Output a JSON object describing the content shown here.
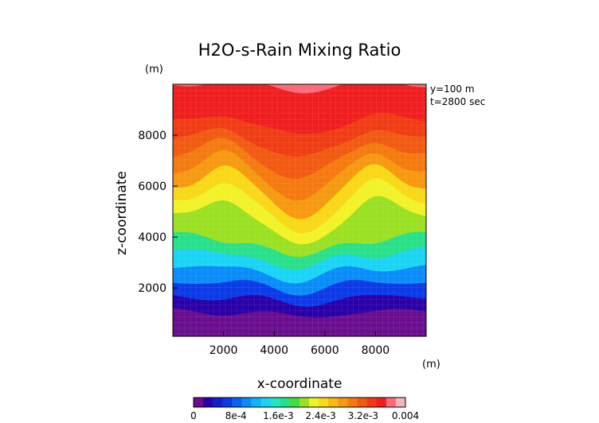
{
  "chart_data": {
    "type": "heatmap",
    "title": "H2O-s-Rain Mixing Ratio",
    "xlabel": "x-coordinate",
    "ylabel": "z-coordinate",
    "x_unit": "(m)",
    "y_unit": "(m)",
    "xlim": [
      0,
      10000
    ],
    "ylim": [
      100,
      10000
    ],
    "x_ticks": [
      2000,
      4000,
      6000,
      8000
    ],
    "y_ticks": [
      2000,
      4000,
      6000,
      8000
    ],
    "annotations": [
      "y=100 m",
      "t=2800 sec"
    ],
    "grid": true,
    "colorbar": {
      "min": 0,
      "max": 0.004,
      "tick_labels": [
        "0",
        "8e-4",
        "1.6e-3",
        "2.4e-3",
        "3.2e-3",
        "0.004"
      ],
      "colors": [
        "#6a0d8f",
        "#2a00a8",
        "#1020c8",
        "#0b3ae6",
        "#0a62f0",
        "#0a8cf8",
        "#10b4fb",
        "#19d4f5",
        "#1ee8c8",
        "#28e08a",
        "#40dc40",
        "#9be022",
        "#f2f228",
        "#f9d818",
        "#f8b810",
        "#f69910",
        "#f47a10",
        "#f25a12",
        "#f03c14",
        "#f01e1e",
        "#ff6a7a",
        "#f7b4b4"
      ]
    },
    "layers": [
      {
        "z": 0,
        "level": 0
      },
      {
        "z": 500,
        "level": 0
      },
      {
        "z": 1100,
        "level": 1
      },
      {
        "z": 1700,
        "level": 3
      },
      {
        "z": 2300,
        "level": 5
      },
      {
        "z": 2900,
        "level": 7
      },
      {
        "z": 3500,
        "level": 9
      },
      {
        "z": 4100,
        "level": 11
      },
      {
        "z": 4800,
        "level": 12
      },
      {
        "z": 5400,
        "level": 13
      },
      {
        "z": 6000,
        "level": 15
      },
      {
        "z": 6600,
        "level": 16
      },
      {
        "z": 7200,
        "level": 17
      },
      {
        "z": 7800,
        "level": 18
      },
      {
        "z": 8500,
        "level": 19
      },
      {
        "z": 9200,
        "level": 19
      },
      {
        "z": 10000,
        "level": 20
      }
    ]
  }
}
